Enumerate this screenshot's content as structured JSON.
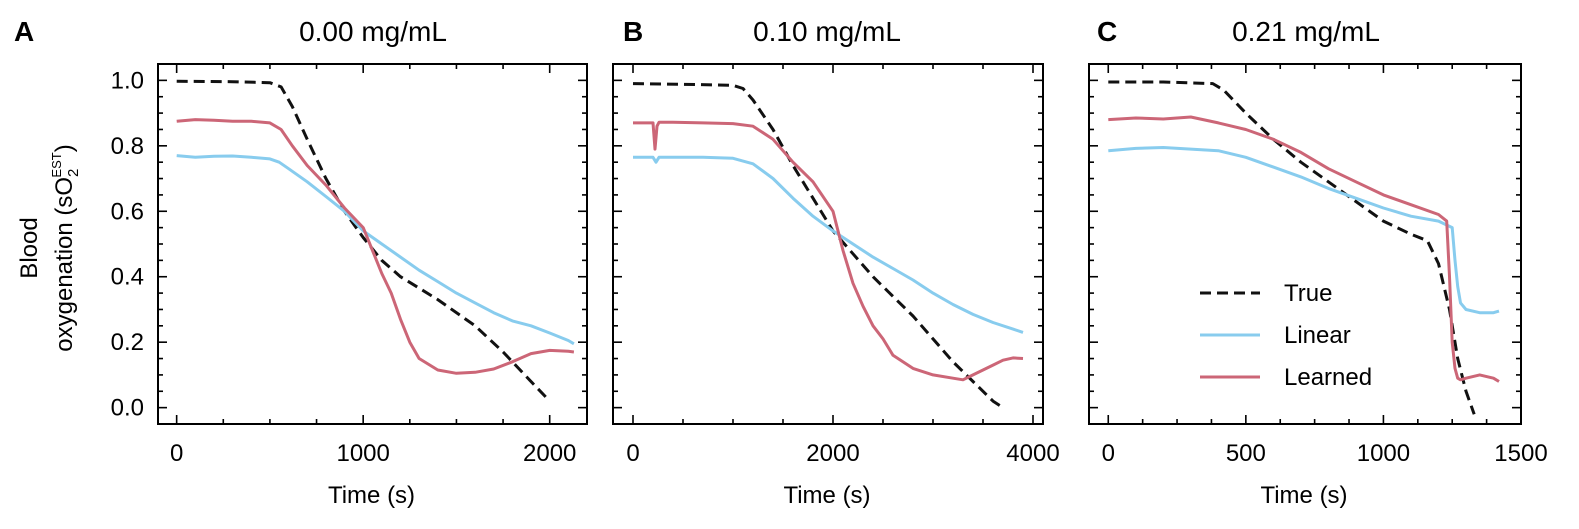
{
  "y_label_line1": "Blood",
  "y_label_line2_prefix": "oxygenation (sO",
  "y_label_line2_sub": "2",
  "y_label_line2_sup": "EST",
  "y_label_line2_suffix": ")",
  "legend": {
    "placement": "lower-right of panel C",
    "entries": [
      {
        "label": "True",
        "style": "dashed",
        "color": "#111111"
      },
      {
        "label": "Linear",
        "style": "solid",
        "color": "#88CCEE"
      },
      {
        "label": "Learned",
        "style": "solid",
        "color": "#CC6677"
      }
    ]
  },
  "chart_data": [
    {
      "type": "line",
      "panel_letter": "A",
      "title": "0.00 mg/mL",
      "xlabel": "Time (s)",
      "ylabel": "Blood oxygenation (sO2 EST)",
      "xlim": [
        -100,
        2200
      ],
      "ylim": [
        -0.05,
        1.05
      ],
      "xticks": [
        0,
        1000,
        2000
      ],
      "xtick_labels": [
        "0",
        "1000",
        "2000"
      ],
      "yticks": [
        0.0,
        0.2,
        0.4,
        0.6,
        0.8,
        1.0
      ],
      "ytick_labels": [
        "0.0",
        "0.2",
        "0.4",
        "0.6",
        "0.8",
        "1.0"
      ],
      "grid": false,
      "series": [
        {
          "name": "True",
          "color": "#111111",
          "dashed": true,
          "x": [
            0,
            300,
            500,
            560,
            620,
            700,
            800,
            900,
            1000,
            1100,
            1200,
            1400,
            1600,
            1750,
            1900,
            2000
          ],
          "y": [
            0.997,
            0.996,
            0.993,
            0.98,
            0.92,
            0.82,
            0.7,
            0.6,
            0.52,
            0.45,
            0.4,
            0.33,
            0.25,
            0.17,
            0.08,
            0.02
          ]
        },
        {
          "name": "Linear",
          "color": "#88CCEE",
          "dashed": false,
          "x": [
            0,
            100,
            200,
            300,
            400,
            500,
            550,
            600,
            700,
            800,
            900,
            1000,
            1100,
            1200,
            1300,
            1400,
            1500,
            1600,
            1700,
            1800,
            1900,
            2000,
            2100,
            2130
          ],
          "y": [
            0.77,
            0.765,
            0.768,
            0.769,
            0.765,
            0.76,
            0.75,
            0.73,
            0.69,
            0.645,
            0.6,
            0.54,
            0.5,
            0.46,
            0.42,
            0.385,
            0.35,
            0.32,
            0.29,
            0.265,
            0.25,
            0.228,
            0.205,
            0.195
          ]
        },
        {
          "name": "Learned",
          "color": "#CC6677",
          "dashed": false,
          "x": [
            0,
            100,
            200,
            300,
            400,
            500,
            560,
            620,
            700,
            800,
            900,
            1000,
            1050,
            1100,
            1150,
            1200,
            1250,
            1300,
            1400,
            1500,
            1600,
            1700,
            1800,
            1900,
            2000,
            2100,
            2130
          ],
          "y": [
            0.875,
            0.88,
            0.878,
            0.875,
            0.875,
            0.87,
            0.85,
            0.8,
            0.74,
            0.68,
            0.61,
            0.55,
            0.48,
            0.41,
            0.35,
            0.27,
            0.2,
            0.15,
            0.115,
            0.105,
            0.108,
            0.118,
            0.14,
            0.165,
            0.175,
            0.172,
            0.17
          ]
        }
      ]
    },
    {
      "type": "line",
      "panel_letter": "B",
      "title": "0.10 mg/mL",
      "xlabel": "Time (s)",
      "xlim": [
        -200,
        4100
      ],
      "ylim": [
        -0.05,
        1.05
      ],
      "xticks": [
        0,
        2000,
        4000
      ],
      "xtick_labels": [
        "0",
        "2000",
        "4000"
      ],
      "yticks": [
        0.0,
        0.2,
        0.4,
        0.6,
        0.8,
        1.0
      ],
      "grid": false,
      "series": [
        {
          "name": "True",
          "color": "#111111",
          "dashed": true,
          "x": [
            0,
            500,
            1000,
            1100,
            1200,
            1400,
            1600,
            1800,
            2000,
            2200,
            2400,
            2600,
            2800,
            3000,
            3200,
            3400,
            3600,
            3700
          ],
          "y": [
            0.99,
            0.988,
            0.985,
            0.975,
            0.94,
            0.85,
            0.74,
            0.64,
            0.54,
            0.47,
            0.4,
            0.34,
            0.28,
            0.21,
            0.14,
            0.08,
            0.02,
            0.0
          ]
        },
        {
          "name": "Linear",
          "color": "#88CCEE",
          "dashed": false,
          "x": [
            0,
            200,
            230,
            260,
            400,
            700,
            1000,
            1200,
            1400,
            1600,
            1800,
            2000,
            2200,
            2400,
            2600,
            2800,
            3000,
            3200,
            3400,
            3600,
            3800,
            3900
          ],
          "y": [
            0.765,
            0.765,
            0.75,
            0.765,
            0.765,
            0.765,
            0.762,
            0.745,
            0.7,
            0.64,
            0.585,
            0.54,
            0.5,
            0.46,
            0.425,
            0.39,
            0.35,
            0.315,
            0.285,
            0.26,
            0.24,
            0.23
          ]
        },
        {
          "name": "Learned",
          "color": "#CC6677",
          "dashed": false,
          "x": [
            0,
            200,
            220,
            240,
            260,
            400,
            700,
            1000,
            1200,
            1400,
            1600,
            1800,
            2000,
            2100,
            2200,
            2300,
            2400,
            2500,
            2600,
            2800,
            3000,
            3200,
            3300,
            3400,
            3500,
            3600,
            3700,
            3800,
            3900
          ],
          "y": [
            0.87,
            0.87,
            0.79,
            0.86,
            0.872,
            0.872,
            0.87,
            0.868,
            0.86,
            0.82,
            0.75,
            0.69,
            0.6,
            0.48,
            0.38,
            0.31,
            0.25,
            0.21,
            0.16,
            0.12,
            0.1,
            0.09,
            0.085,
            0.1,
            0.115,
            0.13,
            0.145,
            0.152,
            0.15
          ]
        }
      ]
    },
    {
      "type": "line",
      "panel_letter": "C",
      "title": "0.21 mg/mL",
      "xlabel": "Time (s)",
      "xlim": [
        -70,
        1500
      ],
      "ylim": [
        -0.05,
        1.05
      ],
      "xticks": [
        0,
        500,
        1000,
        1500
      ],
      "xtick_labels": [
        "0",
        "500",
        "1000",
        "1500"
      ],
      "yticks": [
        0.0,
        0.2,
        0.4,
        0.6,
        0.8,
        1.0
      ],
      "grid": false,
      "series": [
        {
          "name": "True",
          "color": "#111111",
          "dashed": true,
          "x": [
            0,
            200,
            380,
            420,
            500,
            600,
            700,
            800,
            900,
            1000,
            1100,
            1160,
            1200,
            1240,
            1270,
            1300,
            1330
          ],
          "y": [
            0.995,
            0.995,
            0.99,
            0.97,
            0.9,
            0.82,
            0.75,
            0.69,
            0.63,
            0.57,
            0.53,
            0.51,
            0.44,
            0.3,
            0.15,
            0.05,
            -0.02
          ]
        },
        {
          "name": "Linear",
          "color": "#88CCEE",
          "dashed": false,
          "x": [
            0,
            100,
            200,
            300,
            400,
            500,
            600,
            700,
            800,
            900,
            1000,
            1100,
            1200,
            1250,
            1260,
            1270,
            1280,
            1300,
            1350,
            1400,
            1420
          ],
          "y": [
            0.785,
            0.792,
            0.795,
            0.79,
            0.785,
            0.765,
            0.735,
            0.705,
            0.67,
            0.64,
            0.61,
            0.585,
            0.57,
            0.55,
            0.45,
            0.37,
            0.32,
            0.3,
            0.29,
            0.29,
            0.295
          ]
        },
        {
          "name": "Learned",
          "color": "#CC6677",
          "dashed": false,
          "x": [
            0,
            100,
            200,
            300,
            400,
            500,
            600,
            700,
            800,
            900,
            1000,
            1100,
            1200,
            1230,
            1240,
            1250,
            1260,
            1270,
            1280,
            1300,
            1350,
            1400,
            1420
          ],
          "y": [
            0.88,
            0.885,
            0.882,
            0.888,
            0.87,
            0.85,
            0.82,
            0.78,
            0.73,
            0.69,
            0.65,
            0.62,
            0.59,
            0.57,
            0.4,
            0.2,
            0.12,
            0.09,
            0.085,
            0.09,
            0.1,
            0.09,
            0.08
          ]
        }
      ]
    }
  ]
}
